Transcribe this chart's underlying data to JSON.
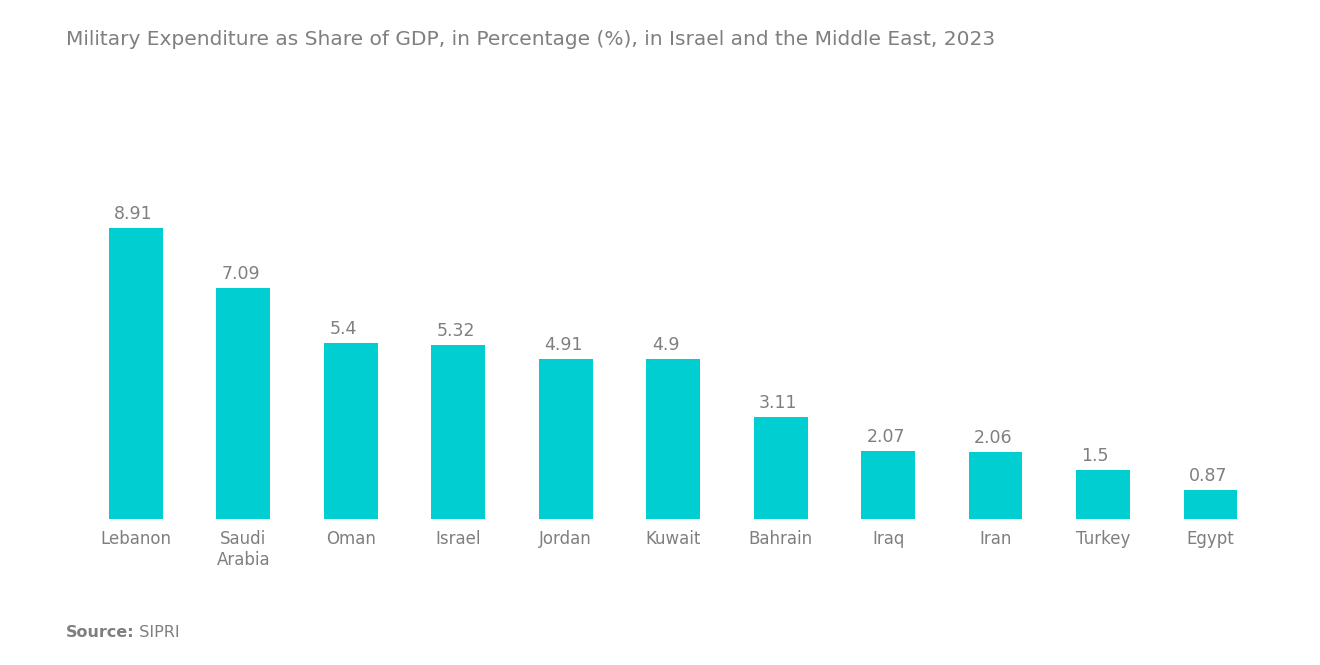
{
  "title": "Military Expenditure as Share of GDP, in Percentage (%), in Israel and the Middle East, 2023",
  "categories": [
    "Lebanon",
    "Saudi\nArabia",
    "Oman",
    "Israel",
    "Jordan",
    "Kuwait",
    "Bahrain",
    "Iraq",
    "Iran",
    "Turkey",
    "Egypt"
  ],
  "values": [
    8.91,
    7.09,
    5.4,
    5.32,
    4.91,
    4.9,
    3.11,
    2.07,
    2.06,
    1.5,
    0.87
  ],
  "bar_color": "#00CED1",
  "label_color": "#7f7f7f",
  "title_color": "#7f7f7f",
  "source_bold": "Source:",
  "source_normal": "  SIPRI",
  "background_color": "#ffffff",
  "ylim": [
    0,
    10.2
  ],
  "bar_width": 0.5,
  "title_fontsize": 14.5,
  "label_fontsize": 12.5,
  "tick_fontsize": 12,
  "source_fontsize": 11.5
}
